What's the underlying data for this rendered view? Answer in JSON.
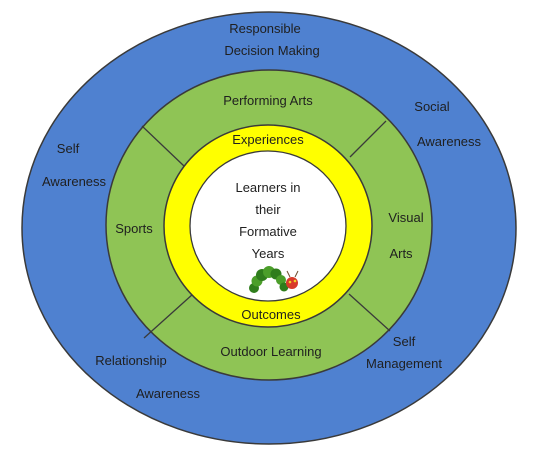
{
  "center": {
    "lines": [
      "Learners in",
      "their",
      "Formative",
      "Years"
    ],
    "icon": "caterpillar-icon"
  },
  "yellow_ring": {
    "top": "Experiences",
    "bottom": "Outcomes"
  },
  "green_ring": {
    "top": "Performing Arts",
    "left": "Sports",
    "right": [
      "Visual",
      "Arts"
    ],
    "bottom": "Outdoor Learning"
  },
  "blue_ring": {
    "top": [
      "Responsible",
      "Decision Making"
    ],
    "top_right": [
      "Social",
      "Awareness"
    ],
    "left": [
      "Self",
      "Awareness"
    ],
    "bottom_right": [
      "Self",
      "Management"
    ],
    "bottom_left": [
      "Relationship",
      "Awareness"
    ]
  },
  "colors": {
    "blue": "#4f81d0",
    "green": "#8fc455",
    "yellow": "#ffff00",
    "white": "#ffffff",
    "outline": "#3a3a3a"
  }
}
